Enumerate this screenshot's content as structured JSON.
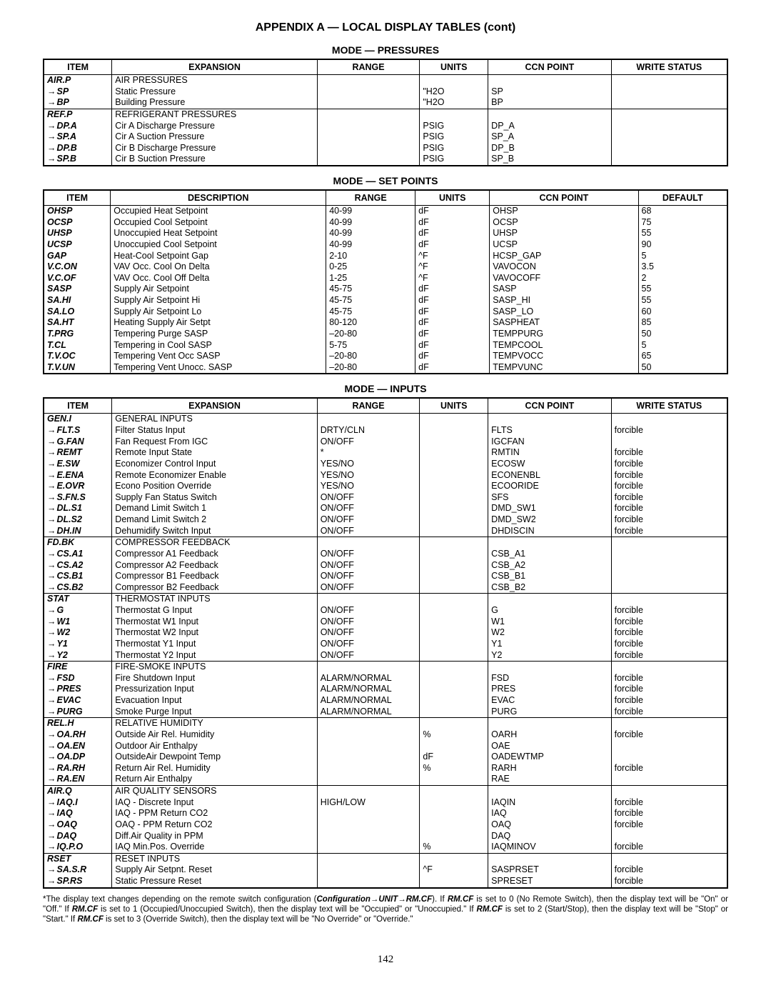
{
  "page_title": "APPENDIX A — LOCAL DISPLAY TABLES (cont)",
  "page_number": "142",
  "footnote_parts": [
    "*The display text changes depending on the remote switch configuration (",
    "Configuration",
    "→",
    "UNIT",
    "→",
    "RM.CF",
    "). If ",
    "RM.CF",
    " is set to 0 (No Remote Switch), then the display text will be \"On\" or \"Off.\" If ",
    "RM.CF",
    " is set to 1 (Occupied/Unoccupied Switch), then the display text will be \"Occupied\" or \"Unoccupied.\" If ",
    "RM.CF",
    " is set to 2 (Start/Stop), then the display text will be \"Stop\" or \"Start.\" If ",
    "RM.CF",
    " is set to 3 (Override Switch), then the display text will be \"No Override\" or \"Override.\""
  ],
  "tables": [
    {
      "title": "MODE — PRESSURES",
      "class": "pr",
      "headers": [
        "ITEM",
        "EXPANSION",
        "RANGE",
        "UNITS",
        "CCN POINT",
        "WRITE STATUS"
      ],
      "groups": [
        [
          {
            "item": "AIR.P",
            "arrow": false,
            "c2": "AIR PRESSURES",
            "c3": "",
            "c4": "",
            "c5": "",
            "c6": ""
          },
          {
            "item": "SP",
            "arrow": true,
            "c2": "Static Pressure",
            "c3": "",
            "c4": "\"H2O",
            "c5": "SP",
            "c6": ""
          },
          {
            "item": "BP",
            "arrow": true,
            "c2": "Building Pressure",
            "c3": "",
            "c4": "\"H2O",
            "c5": "BP",
            "c6": ""
          }
        ],
        [
          {
            "item": "REF.P",
            "arrow": false,
            "c2": "REFRIGERANT PRESSURES",
            "c3": "",
            "c4": "",
            "c5": "",
            "c6": ""
          },
          {
            "item": "DP.A",
            "arrow": true,
            "c2": "Cir A Discharge Pressure",
            "c3": "",
            "c4": "PSIG",
            "c5": "DP_A",
            "c6": ""
          },
          {
            "item": "SP.A",
            "arrow": true,
            "c2": "Cir A Suction Pressure",
            "c3": "",
            "c4": "PSIG",
            "c5": "SP_A",
            "c6": ""
          },
          {
            "item": "DP.B",
            "arrow": true,
            "c2": "Cir B Discharge Pressure",
            "c3": "",
            "c4": "PSIG",
            "c5": "DP_B",
            "c6": ""
          },
          {
            "item": "SP.B",
            "arrow": true,
            "c2": "Cir B Suction Pressure",
            "c3": "",
            "c4": "PSIG",
            "c5": "SP_B",
            "c6": ""
          }
        ]
      ]
    },
    {
      "title": "MODE — SET POINTS",
      "class": "sp",
      "headers": [
        "ITEM",
        "DESCRIPTION",
        "RANGE",
        "UNITS",
        "CCN POINT",
        "DEFAULT"
      ],
      "groups": [
        [
          {
            "item": "OHSP",
            "arrow": false,
            "c2": "Occupied Heat Setpoint",
            "c3": "40-99",
            "c4": "dF",
            "c5": "OHSP",
            "c6": "68"
          },
          {
            "item": "OCSP",
            "arrow": false,
            "c2": "Occupied Cool Setpoint",
            "c3": "40-99",
            "c4": "dF",
            "c5": "OCSP",
            "c6": "75"
          },
          {
            "item": "UHSP",
            "arrow": false,
            "c2": "Unoccupied Heat Setpoint",
            "c3": "40-99",
            "c4": "dF",
            "c5": "UHSP",
            "c6": "55"
          },
          {
            "item": "UCSP",
            "arrow": false,
            "c2": "Unoccupied Cool Setpoint",
            "c3": "40-99",
            "c4": "dF",
            "c5": "UCSP",
            "c6": "90"
          },
          {
            "item": "GAP",
            "arrow": false,
            "c2": "Heat-Cool Setpoint Gap",
            "c3": "2-10",
            "c4": "^F",
            "c5": "HCSP_GAP",
            "c6": "5"
          },
          {
            "item": "V.C.ON",
            "arrow": false,
            "c2": "VAV Occ. Cool On Delta",
            "c3": "0-25",
            "c4": "^F",
            "c5": "VAVOCON",
            "c6": "3.5"
          },
          {
            "item": "V.C.OF",
            "arrow": false,
            "c2": "VAV Occ. Cool Off Delta",
            "c3": "1-25",
            "c4": "^F",
            "c5": "VAVOCOFF",
            "c6": "2"
          },
          {
            "item": "SASP",
            "arrow": false,
            "c2": "Supply Air Setpoint",
            "c3": "45-75",
            "c4": "dF",
            "c5": "SASP",
            "c6": "55"
          },
          {
            "item": "SA.HI",
            "arrow": false,
            "c2": "Supply Air Setpoint Hi",
            "c3": "45-75",
            "c4": "dF",
            "c5": "SASP_HI",
            "c6": "55"
          },
          {
            "item": "SA.LO",
            "arrow": false,
            "c2": "Supply Air Setpoint Lo",
            "c3": "45-75",
            "c4": "dF",
            "c5": "SASP_LO",
            "c6": "60"
          },
          {
            "item": "SA.HT",
            "arrow": false,
            "c2": "Heating Supply Air Setpt",
            "c3": "80-120",
            "c4": "dF",
            "c5": "SASPHEAT",
            "c6": "85"
          },
          {
            "item": "T.PRG",
            "arrow": false,
            "c2": "Tempering Purge SASP",
            "c3": "–20-80",
            "c4": "dF",
            "c5": "TEMPPURG",
            "c6": "50"
          },
          {
            "item": "T.CL",
            "arrow": false,
            "c2": "Tempering in Cool SASP",
            "c3": "5-75",
            "c4": "dF",
            "c5": "TEMPCOOL",
            "c6": "5"
          },
          {
            "item": "T.V.OC",
            "arrow": false,
            "c2": "Tempering Vent Occ SASP",
            "c3": "–20-80",
            "c4": "dF",
            "c5": "TEMPVOCC",
            "c6": "65"
          },
          {
            "item": "T.V.UN",
            "arrow": false,
            "c2": "Tempering Vent Unocc. SASP",
            "c3": "–20-80",
            "c4": "dF",
            "c5": "TEMPVUNC",
            "c6": "50"
          }
        ]
      ]
    },
    {
      "title": "MODE — INPUTS",
      "class": "in",
      "headers": [
        "ITEM",
        "EXPANSION",
        "RANGE",
        "UNITS",
        "CCN POINT",
        "WRITE STATUS"
      ],
      "groups": [
        [
          {
            "item": "GEN.I",
            "arrow": false,
            "c2": "GENERAL INPUTS",
            "c3": "",
            "c4": "",
            "c5": "",
            "c6": ""
          },
          {
            "item": "FLT.S",
            "arrow": true,
            "c2": "Filter Status Input",
            "c3": "DRTY/CLN",
            "c4": "",
            "c5": "FLTS",
            "c6": "forcible"
          },
          {
            "item": "G.FAN",
            "arrow": true,
            "c2": "Fan Request From IGC",
            "c3": "ON/OFF",
            "c4": "",
            "c5": "IGCFAN",
            "c6": ""
          },
          {
            "item": "REMT",
            "arrow": true,
            "c2": "Remote Input State",
            "c3": "*",
            "c4": "",
            "c5": "RMTIN",
            "c6": "forcible"
          },
          {
            "item": "E.SW",
            "arrow": true,
            "c2": "Economizer Control Input",
            "c3": "YES/NO",
            "c4": "",
            "c5": "ECOSW",
            "c6": "forcible"
          },
          {
            "item": "E.ENA",
            "arrow": true,
            "c2": "Remote Economizer Enable",
            "c3": "YES/NO",
            "c4": "",
            "c5": "ECONENBL",
            "c6": "forcible"
          },
          {
            "item": "E.OVR",
            "arrow": true,
            "c2": "Econo Position Override",
            "c3": "YES/NO",
            "c4": "",
            "c5": "ECOORIDE",
            "c6": "forcible"
          },
          {
            "item": "S.FN.S",
            "arrow": true,
            "c2": "Supply Fan Status Switch",
            "c3": "ON/OFF",
            "c4": "",
            "c5": "SFS",
            "c6": "forcible"
          },
          {
            "item": "DL.S1",
            "arrow": true,
            "c2": "Demand Limit Switch 1",
            "c3": "ON/OFF",
            "c4": "",
            "c5": "DMD_SW1",
            "c6": "forcible"
          },
          {
            "item": "DL.S2",
            "arrow": true,
            "c2": "Demand Limit Switch 2",
            "c3": "ON/OFF",
            "c4": "",
            "c5": "DMD_SW2",
            "c6": "forcible"
          },
          {
            "item": "DH.IN",
            "arrow": true,
            "c2": "Dehumidify Switch Input",
            "c3": "ON/OFF",
            "c4": "",
            "c5": "DHDISCIN",
            "c6": "forcible"
          }
        ],
        [
          {
            "item": "FD.BK",
            "arrow": false,
            "c2": "COMPRESSOR FEEDBACK",
            "c3": "",
            "c4": "",
            "c5": "",
            "c6": ""
          },
          {
            "item": "CS.A1",
            "arrow": true,
            "c2": "Compressor A1 Feedback",
            "c3": "ON/OFF",
            "c4": "",
            "c5": "CSB_A1",
            "c6": ""
          },
          {
            "item": "CS.A2",
            "arrow": true,
            "c2": "Compressor A2 Feedback",
            "c3": "ON/OFF",
            "c4": "",
            "c5": "CSB_A2",
            "c6": ""
          },
          {
            "item": "CS.B1",
            "arrow": true,
            "c2": "Compressor B1 Feedback",
            "c3": "ON/OFF",
            "c4": "",
            "c5": "CSB_B1",
            "c6": ""
          },
          {
            "item": "CS.B2",
            "arrow": true,
            "c2": "Compressor B2 Feedback",
            "c3": "ON/OFF",
            "c4": "",
            "c5": "CSB_B2",
            "c6": ""
          }
        ],
        [
          {
            "item": "STAT",
            "arrow": false,
            "c2": "THERMOSTAT INPUTS",
            "c3": "",
            "c4": "",
            "c5": "",
            "c6": ""
          },
          {
            "item": "G",
            "arrow": true,
            "c2": "Thermostat G Input",
            "c3": "ON/OFF",
            "c4": "",
            "c5": "G",
            "c6": "forcible"
          },
          {
            "item": "W1",
            "arrow": true,
            "c2": "Thermostat W1 Input",
            "c3": "ON/OFF",
            "c4": "",
            "c5": "W1",
            "c6": "forcible"
          },
          {
            "item": "W2",
            "arrow": true,
            "c2": "Thermostat W2 Input",
            "c3": "ON/OFF",
            "c4": "",
            "c5": "W2",
            "c6": "forcible"
          },
          {
            "item": "Y1",
            "arrow": true,
            "c2": "Thermostat Y1 Input",
            "c3": "ON/OFF",
            "c4": "",
            "c5": "Y1",
            "c6": "forcible"
          },
          {
            "item": "Y2",
            "arrow": true,
            "c2": "Thermostat Y2 Input",
            "c3": "ON/OFF",
            "c4": "",
            "c5": "Y2",
            "c6": "forcible"
          }
        ],
        [
          {
            "item": "FIRE",
            "arrow": false,
            "c2": "FIRE-SMOKE INPUTS",
            "c3": "",
            "c4": "",
            "c5": "",
            "c6": ""
          },
          {
            "item": "FSD",
            "arrow": true,
            "c2": "Fire Shutdown Input",
            "c3": "ALARM/NORMAL",
            "c4": "",
            "c5": "FSD",
            "c6": "forcible"
          },
          {
            "item": "PRES",
            "arrow": true,
            "c2": "Pressurization Input",
            "c3": "ALARM/NORMAL",
            "c4": "",
            "c5": "PRES",
            "c6": "forcible"
          },
          {
            "item": "EVAC",
            "arrow": true,
            "c2": "Evacuation Input",
            "c3": "ALARM/NORMAL",
            "c4": "",
            "c5": "EVAC",
            "c6": "forcible"
          },
          {
            "item": "PURG",
            "arrow": true,
            "c2": "Smoke Purge Input",
            "c3": "ALARM/NORMAL",
            "c4": "",
            "c5": "PURG",
            "c6": "forcible"
          }
        ],
        [
          {
            "item": "REL.H",
            "arrow": false,
            "c2": "RELATIVE HUMIDITY",
            "c3": "",
            "c4": "",
            "c5": "",
            "c6": ""
          },
          {
            "item": "OA.RH",
            "arrow": true,
            "c2": "Outside Air Rel. Humidity",
            "c3": "",
            "c4": "%",
            "c5": "OARH",
            "c6": "forcible"
          },
          {
            "item": "OA.EN",
            "arrow": true,
            "c2": "Outdoor Air Enthalpy",
            "c3": "",
            "c4": "",
            "c5": "OAE",
            "c6": ""
          },
          {
            "item": "OA.DP",
            "arrow": true,
            "c2": "OutsideAir Dewpoint Temp",
            "c3": "",
            "c4": "dF",
            "c5": "OADEWTMP",
            "c6": ""
          },
          {
            "item": "RA.RH",
            "arrow": true,
            "c2": "Return Air Rel. Humidity",
            "c3": "",
            "c4": "%",
            "c5": "RARH",
            "c6": "forcible"
          },
          {
            "item": "RA.EN",
            "arrow": true,
            "c2": "Return Air Enthalpy",
            "c3": "",
            "c4": "",
            "c5": "RAE",
            "c6": ""
          }
        ],
        [
          {
            "item": "AIR.Q",
            "arrow": false,
            "c2": "AIR QUALITY SENSORS",
            "c3": "",
            "c4": "",
            "c5": "",
            "c6": ""
          },
          {
            "item": "IAQ.I",
            "arrow": true,
            "c2": "IAQ - Discrete Input",
            "c3": "HIGH/LOW",
            "c4": "",
            "c5": "IAQIN",
            "c6": "forcible"
          },
          {
            "item": "IAQ",
            "arrow": true,
            "c2": "IAQ - PPM Return CO2",
            "c3": "",
            "c4": "",
            "c5": "IAQ",
            "c6": "forcible"
          },
          {
            "item": "OAQ",
            "arrow": true,
            "c2": "OAQ - PPM Return CO2",
            "c3": "",
            "c4": "",
            "c5": "OAQ",
            "c6": "forcible"
          },
          {
            "item": "DAQ",
            "arrow": true,
            "c2": "Diff.Air Quality in PPM",
            "c3": "",
            "c4": "",
            "c5": "DAQ",
            "c6": ""
          },
          {
            "item": "IQ.P.O",
            "arrow": true,
            "c2": "IAQ Min.Pos. Override",
            "c3": "",
            "c4": "%",
            "c5": "IAQMINOV",
            "c6": "forcible"
          }
        ],
        [
          {
            "item": "RSET",
            "arrow": false,
            "c2": "RESET INPUTS",
            "c3": "",
            "c4": "",
            "c5": "",
            "c6": ""
          },
          {
            "item": "SA.S.R",
            "arrow": true,
            "c2": "Supply Air Setpnt. Reset",
            "c3": "",
            "c4": "^F",
            "c5": "SASPRSET",
            "c6": "forcible"
          },
          {
            "item": "SP.RS",
            "arrow": true,
            "c2": "Static Pressure Reset",
            "c3": "",
            "c4": "",
            "c5": "SPRESET",
            "c6": "forcible"
          }
        ]
      ]
    }
  ]
}
